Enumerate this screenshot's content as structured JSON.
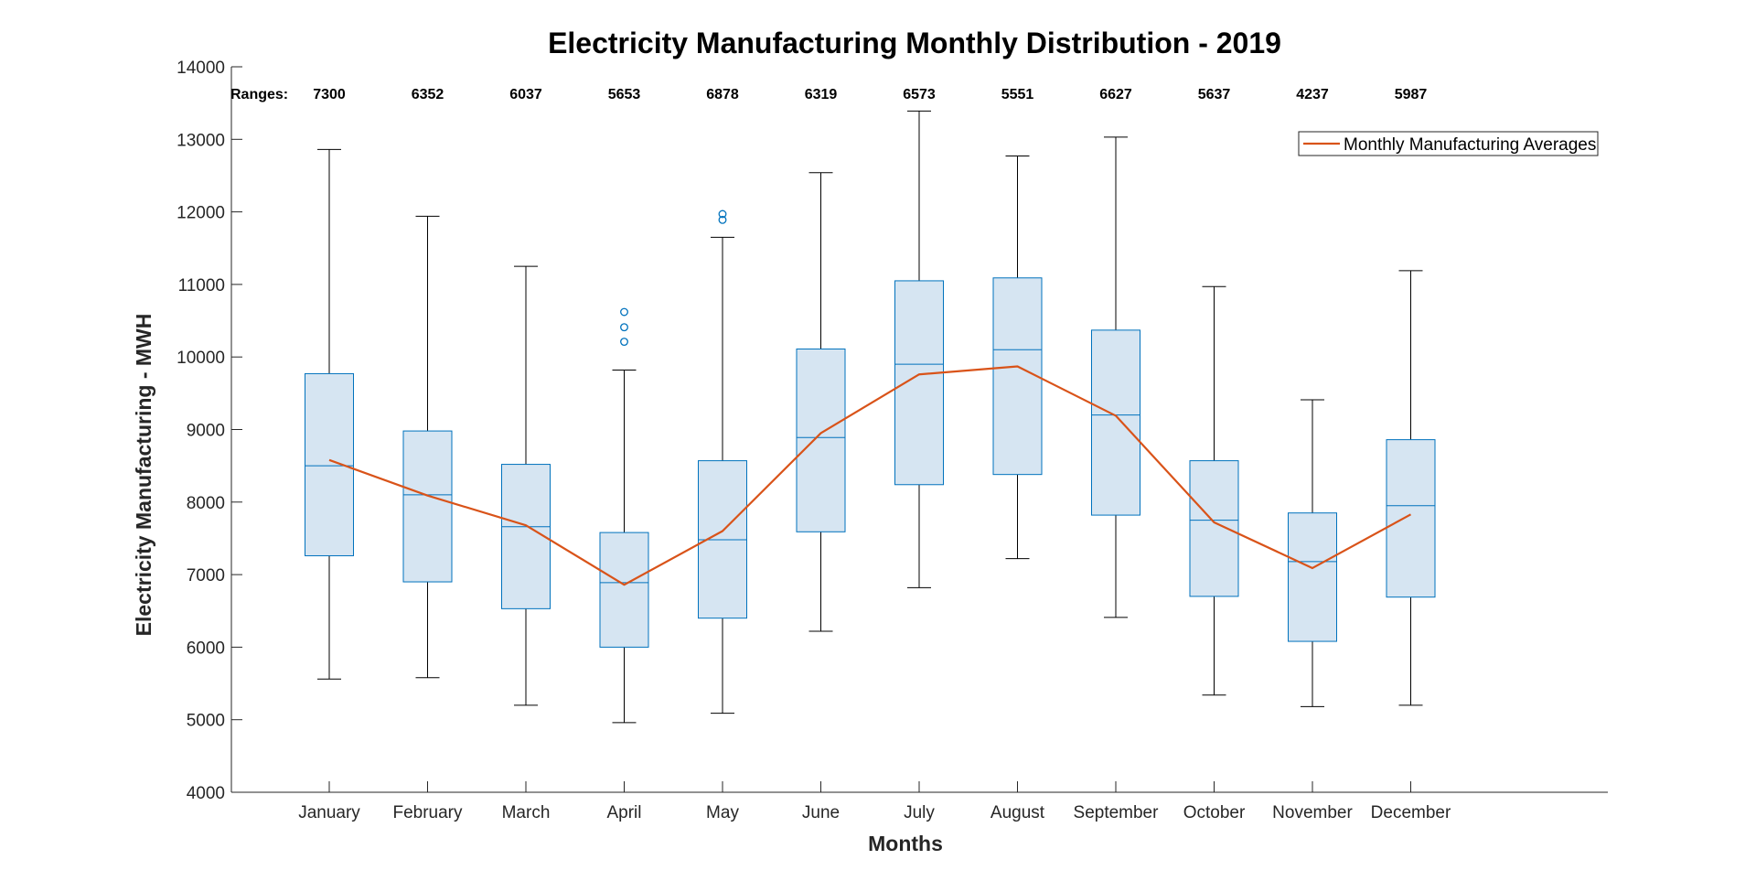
{
  "chart_data": {
    "type": "box",
    "title": "Electricity Manufacturing Monthly Distribution - 2019",
    "xlabel": "Months",
    "ylabel": "Electricity Manufacturing - MWH",
    "ylim": [
      4000,
      14000
    ],
    "yticks": [
      "4000",
      "5000",
      "6000",
      "7000",
      "8000",
      "9000",
      "10000",
      "11000",
      "12000",
      "13000",
      "14000"
    ],
    "grid": false,
    "legend": {
      "position": "top-right",
      "entries": [
        "Monthly Manufacturing Averages"
      ]
    },
    "ranges_label": "Ranges:",
    "categories": [
      "January",
      "February",
      "March",
      "April",
      "May",
      "June",
      "July",
      "August",
      "September",
      "October",
      "November",
      "December"
    ],
    "ranges": [
      "7300",
      "6352",
      "6037",
      "5653",
      "6878",
      "6319",
      "6573",
      "5551",
      "6627",
      "5637",
      "4237",
      "5987"
    ],
    "boxes": [
      {
        "min": 5560,
        "q1": 7260,
        "median": 8500,
        "q3": 9770,
        "max": 12860,
        "outliers": []
      },
      {
        "min": 5580,
        "q1": 6900,
        "median": 8100,
        "q3": 8980,
        "max": 11940,
        "outliers": []
      },
      {
        "min": 5200,
        "q1": 6530,
        "median": 7660,
        "q3": 8520,
        "max": 11250,
        "outliers": []
      },
      {
        "min": 4960,
        "q1": 6000,
        "median": 6890,
        "q3": 7580,
        "max": 9820,
        "outliers": [
          10210,
          10410,
          10620
        ]
      },
      {
        "min": 5090,
        "q1": 6400,
        "median": 7480,
        "q3": 8570,
        "max": 11650,
        "outliers": [
          11890,
          11970
        ]
      },
      {
        "min": 6220,
        "q1": 7590,
        "median": 8890,
        "q3": 10110,
        "max": 12540,
        "outliers": []
      },
      {
        "min": 6820,
        "q1": 8240,
        "median": 9900,
        "q3": 11050,
        "max": 13390,
        "outliers": []
      },
      {
        "min": 7220,
        "q1": 8380,
        "median": 10100,
        "q3": 11090,
        "max": 12770,
        "outliers": []
      },
      {
        "min": 6410,
        "q1": 7820,
        "median": 9200,
        "q3": 10370,
        "max": 13030,
        "outliers": []
      },
      {
        "min": 5340,
        "q1": 6700,
        "median": 7750,
        "q3": 8570,
        "max": 10970,
        "outliers": []
      },
      {
        "min": 5180,
        "q1": 6080,
        "median": 7180,
        "q3": 7850,
        "max": 9410,
        "outliers": []
      },
      {
        "min": 5200,
        "q1": 6690,
        "median": 7950,
        "q3": 8860,
        "max": 11190,
        "outliers": []
      }
    ],
    "series": [
      {
        "name": "Monthly Manufacturing Averages",
        "type": "line",
        "values": [
          8580,
          8090,
          7680,
          6860,
          7600,
          8950,
          9760,
          9870,
          9190,
          7720,
          7090,
          7830
        ]
      }
    ],
    "colors": {
      "box_fill": "#d6e5f2",
      "box_stroke": "#0072bd",
      "whisker": "#000000",
      "outlier": "#0072bd",
      "average_line": "#d95319"
    }
  }
}
